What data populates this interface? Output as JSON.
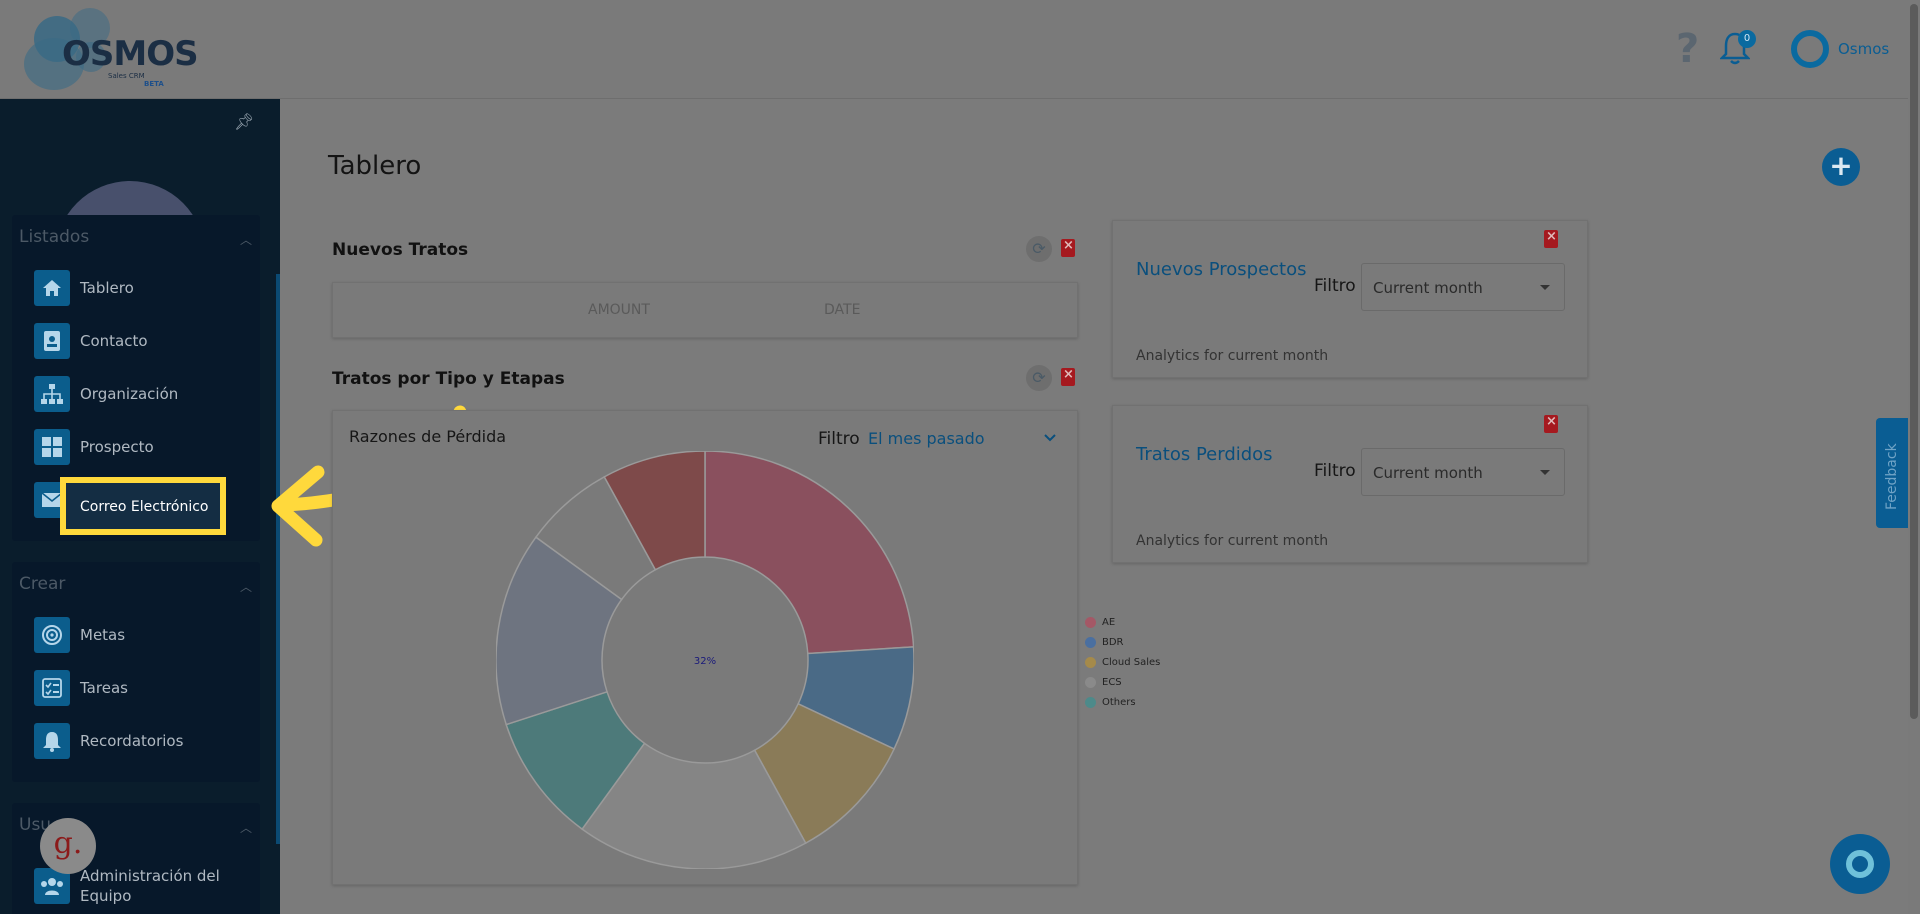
{
  "app": {
    "name": "OSMOS",
    "subtitle": "Sales CRM",
    "badge": "BETA"
  },
  "header": {
    "notification_count": "0",
    "user_name": "Osmos",
    "help_glyph": "?"
  },
  "sidebar": {
    "groups": [
      {
        "title": "Listados",
        "items": [
          {
            "label": "Tablero",
            "icon": "home-icon"
          },
          {
            "label": "Contacto",
            "icon": "contact-card-icon"
          },
          {
            "label": "Organización",
            "icon": "org-chart-icon"
          },
          {
            "label": "Prospecto",
            "icon": "grid-icon"
          },
          {
            "label": "Correo Electrónico",
            "icon": "mail-icon"
          }
        ]
      },
      {
        "title": "Crear",
        "items": [
          {
            "label": "Metas",
            "icon": "target-icon"
          },
          {
            "label": "Tareas",
            "icon": "checklist-icon"
          },
          {
            "label": "Recordatorios",
            "icon": "bell-icon"
          }
        ]
      },
      {
        "title": "Usu",
        "items": [
          {
            "label": "Administración del Equipo",
            "icon": "team-icon"
          }
        ]
      }
    ],
    "highlighted_label": "Correo Electrónico"
  },
  "main": {
    "title": "Tablero",
    "add_glyph": "+",
    "nuevos_tratos": {
      "title": "Nuevos Tratos",
      "columns": [
        "AMOUNT",
        "DATE"
      ]
    },
    "tratos_por_tipo": {
      "title": "Tratos por Tipo y Etapas",
      "subtitle": "Razones de Pérdida",
      "filter_label": "Filtro",
      "filter_value": "El mes pasado"
    },
    "nuevos_prospectos": {
      "title": "Nuevos Prospectos",
      "filter_label": "Filtro",
      "filter_value": "Current month",
      "note": "Analytics for current month"
    },
    "tratos_perdidos": {
      "title": "Tratos Perdidos",
      "filter_label": "Filtro",
      "filter_value": "Current month",
      "note": "Analytics for current month"
    }
  },
  "chart_data": {
    "type": "pie",
    "title": "Razones de Pérdida",
    "center_label": "32%",
    "slices": [
      {
        "value": 24,
        "color": "#8a505e"
      },
      {
        "value": 8,
        "color": "#4a6a86"
      },
      {
        "value": 10,
        "color": "#8a7b58"
      },
      {
        "value": 18,
        "color": "#858585"
      },
      {
        "value": 10,
        "color": "#4d7a7a"
      },
      {
        "value": 15,
        "color": "#6e7480"
      },
      {
        "value": 7,
        "color": "#7a7a7a"
      },
      {
        "value": 8,
        "color": "#7e4a4a"
      }
    ],
    "legend": [
      {
        "label": "AE",
        "color": "#a45866"
      },
      {
        "label": "BDR",
        "color": "#4a6fa0"
      },
      {
        "label": "Cloud Sales",
        "color": "#a58a4a"
      },
      {
        "label": "ECS",
        "color": "#8a8a8a"
      },
      {
        "label": "Others",
        "color": "#4d8a8a"
      }
    ]
  },
  "feedback": {
    "label": "Feedback"
  },
  "overlay_badge": {
    "letter": "g."
  }
}
